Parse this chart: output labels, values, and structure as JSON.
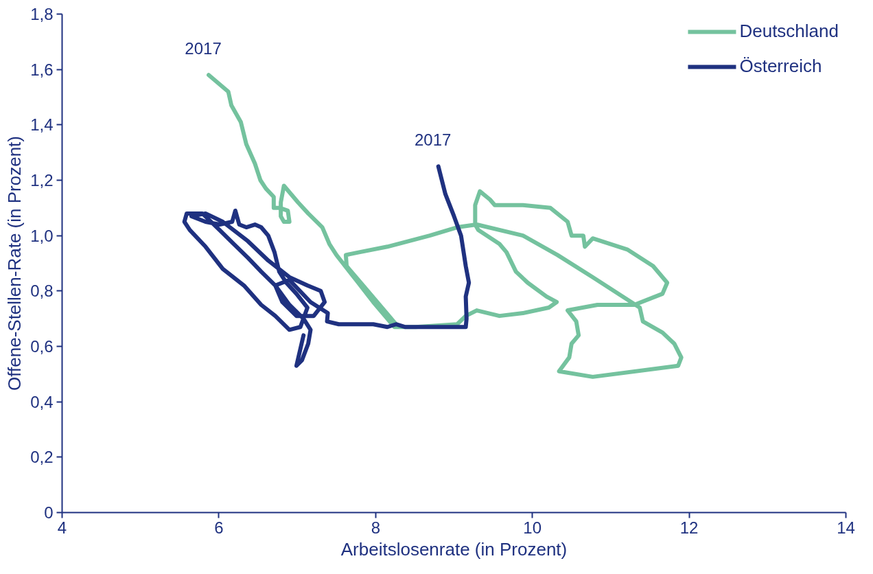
{
  "chart_data": {
    "type": "line",
    "xlabel": "Arbeitslosenrate (in Prozent)",
    "ylabel": "Offene-Stellen-Rate (in Prozent)",
    "xlim": [
      4,
      14
    ],
    "ylim": [
      0,
      1.8
    ],
    "xticks": [
      4,
      6,
      8,
      10,
      12,
      14
    ],
    "yticks": [
      0,
      {
        "value": 0.2,
        "label": "0,2"
      },
      {
        "value": 0.4,
        "label": "0,4"
      },
      {
        "value": 0.6,
        "label": "0,6"
      },
      {
        "value": 0.8,
        "label": "0,8"
      },
      {
        "value": 1.0,
        "label": "1,0"
      },
      {
        "value": 1.2,
        "label": "1,2"
      },
      {
        "value": 1.4,
        "label": "1,4"
      },
      {
        "value": 1.6,
        "label": "1,6"
      },
      {
        "value": 1.8,
        "label": "1,8"
      }
    ],
    "grid": false,
    "legend": "top right",
    "line_style": "solid",
    "annotations": [
      {
        "text": "2017",
        "x": 5.87,
        "y": 1.58
      },
      {
        "text": "2017",
        "x": 8.8,
        "y": 1.25
      }
    ],
    "series": [
      {
        "name": "Deutschland",
        "color": "#74c29e",
        "x": [
          8.26,
          8.11,
          7.84,
          7.63,
          7.62,
          7.79,
          8.15,
          8.69,
          9.04,
          9.29,
          9.88,
          10.32,
          10.77,
          11.37,
          11.41,
          11.66,
          11.81,
          11.9,
          11.86,
          10.77,
          10.34,
          10.47,
          10.5,
          10.59,
          10.56,
          10.45,
          10.83,
          11.3,
          11.66,
          11.72,
          11.54,
          11.21,
          10.77,
          10.67,
          10.65,
          10.5,
          10.45,
          10.23,
          9.88,
          9.52,
          9.46,
          9.33,
          9.27,
          9.27,
          9.31,
          9.58,
          9.67,
          9.79,
          9.94,
          10.18,
          10.31,
          10.21,
          9.88,
          9.58,
          9.29,
          9.15,
          9.04,
          8.51,
          8.24,
          7.97,
          7.75,
          7.5,
          7.41,
          7.32,
          7.14,
          7.01,
          6.83,
          6.79,
          6.79,
          6.83,
          6.9,
          6.88,
          6.78,
          6.7,
          6.7,
          6.6,
          6.53,
          6.46,
          6.35,
          6.28,
          6.16,
          6.12,
          5.87
        ],
        "values": [
          0.68,
          0.73,
          0.82,
          0.89,
          0.93,
          0.94,
          0.96,
          1.0,
          1.03,
          1.04,
          1.0,
          0.93,
          0.85,
          0.74,
          0.69,
          0.65,
          0.61,
          0.56,
          0.53,
          0.49,
          0.51,
          0.56,
          0.61,
          0.64,
          0.69,
          0.73,
          0.75,
          0.75,
          0.79,
          0.83,
          0.89,
          0.95,
          0.99,
          0.96,
          1.0,
          1.0,
          1.05,
          1.1,
          1.11,
          1.11,
          1.13,
          1.16,
          1.11,
          1.04,
          1.02,
          0.97,
          0.94,
          0.87,
          0.83,
          0.78,
          0.76,
          0.74,
          0.72,
          0.71,
          0.73,
          0.71,
          0.68,
          0.67,
          0.67,
          0.76,
          0.84,
          0.93,
          0.97,
          1.03,
          1.08,
          1.12,
          1.18,
          1.12,
          1.07,
          1.05,
          1.05,
          1.09,
          1.1,
          1.1,
          1.14,
          1.17,
          1.2,
          1.26,
          1.33,
          1.41,
          1.47,
          1.52,
          1.58
        ]
      },
      {
        "name": "Österreich",
        "color": "#1f3180",
        "x": [
          7.08,
          6.99,
          7.06,
          7.14,
          7.17,
          7.08,
          6.9,
          6.72,
          6.54,
          6.37,
          6.19,
          6.01,
          5.79,
          5.59,
          5.56,
          5.63,
          5.83,
          6.05,
          6.32,
          6.54,
          6.72,
          6.9,
          7.04,
          7.13,
          6.99,
          6.86,
          6.77,
          6.71,
          6.63,
          6.54,
          6.46,
          6.35,
          6.26,
          6.21,
          6.17,
          6.01,
          5.83,
          5.65,
          5.83,
          6.05,
          6.37,
          6.63,
          6.9,
          7.13,
          7.3,
          7.35,
          7.21,
          6.99,
          6.81,
          6.72,
          6.9,
          7.17,
          7.39,
          7.38,
          7.53,
          7.97,
          8.15,
          8.26,
          8.38,
          8.69,
          9.04,
          9.15,
          9.16,
          9.15,
          9.19,
          9.15,
          9.09,
          9.0,
          8.89,
          8.8
        ],
        "values": [
          0.64,
          0.53,
          0.55,
          0.61,
          0.66,
          0.7,
          0.75,
          0.82,
          0.87,
          0.92,
          0.97,
          1.02,
          1.08,
          1.08,
          1.05,
          1.02,
          0.96,
          0.88,
          0.82,
          0.75,
          0.71,
          0.66,
          0.67,
          0.74,
          0.79,
          0.83,
          0.87,
          0.94,
          1.0,
          1.03,
          1.04,
          1.03,
          1.04,
          1.09,
          1.05,
          1.04,
          1.05,
          1.07,
          1.08,
          1.05,
          0.98,
          0.91,
          0.85,
          0.82,
          0.8,
          0.76,
          0.71,
          0.71,
          0.76,
          0.82,
          0.84,
          0.76,
          0.72,
          0.69,
          0.68,
          0.68,
          0.67,
          0.68,
          0.67,
          0.67,
          0.67,
          0.67,
          0.7,
          0.78,
          0.83,
          0.89,
          1.0,
          1.07,
          1.15,
          1.25
        ]
      }
    ]
  }
}
